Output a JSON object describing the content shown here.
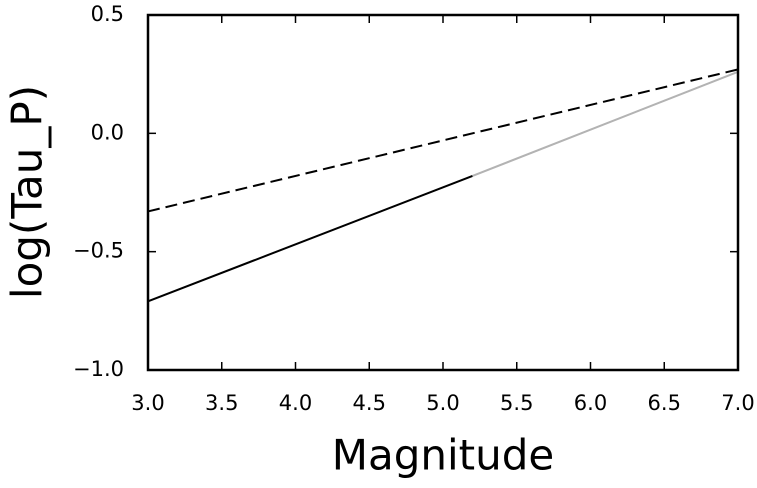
{
  "chart_data": {
    "type": "line",
    "xlabel": "Magnitude",
    "ylabel": "log(Tau_P)",
    "xlim": [
      3.0,
      7.0
    ],
    "ylim": [
      -1.0,
      0.5
    ],
    "xticks": [
      {
        "value": 3.0,
        "label": "3.0"
      },
      {
        "value": 3.5,
        "label": "3.5"
      },
      {
        "value": 4.0,
        "label": "4.0"
      },
      {
        "value": 4.5,
        "label": "4.5"
      },
      {
        "value": 5.0,
        "label": "5.0"
      },
      {
        "value": 5.5,
        "label": "5.5"
      },
      {
        "value": 6.0,
        "label": "6.0"
      },
      {
        "value": 6.5,
        "label": "6.5"
      },
      {
        "value": 7.0,
        "label": "7.0"
      }
    ],
    "yticks": [
      {
        "value": -1.0,
        "label": "−1.0"
      },
      {
        "value": -0.5,
        "label": "−0.5"
      },
      {
        "value": 0.0,
        "label": "0.0"
      },
      {
        "value": 0.5,
        "label": "0.5"
      }
    ],
    "series": [
      {
        "color": "#000000",
        "style": "dashed",
        "x": [
          3.0,
          7.0
        ],
        "values": [
          -0.33,
          0.27
        ]
      },
      {
        "color": "#000000",
        "style": "solid",
        "x": [
          3.0,
          5.2
        ],
        "values": [
          -0.71,
          -0.18
        ]
      },
      {
        "color": "#b3b3b3",
        "style": "solid",
        "x": [
          5.2,
          7.0
        ],
        "values": [
          -0.18,
          0.26
        ]
      }
    ]
  }
}
